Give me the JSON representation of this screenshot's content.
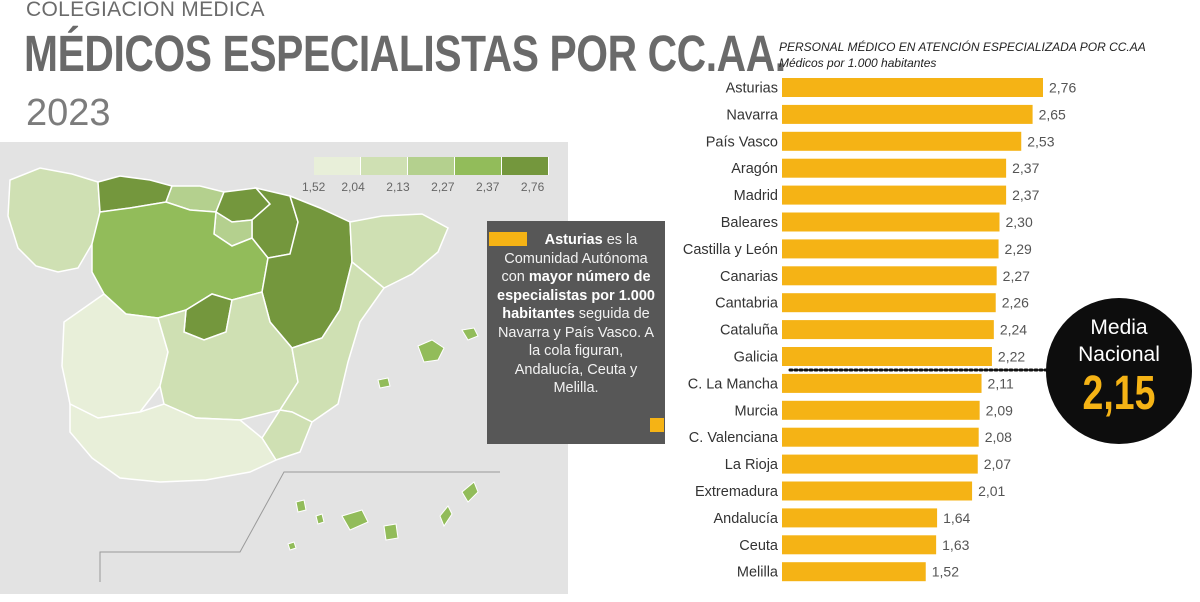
{
  "header": {
    "kicker": "COLEGIACIÓN MÉDICA",
    "title": "MÉDICOS ESPECIALISTAS POR CC.AA.",
    "year": "2023"
  },
  "legend": {
    "labels": [
      "1,52",
      "2,04",
      "2,13",
      "2,27",
      "2,37",
      "2,76"
    ],
    "colors": [
      "#e8efd9",
      "#cfe0b3",
      "#b4d08e",
      "#92bc5a",
      "#74973d"
    ]
  },
  "callout": {
    "region": "Asturias",
    "text1": "es la Comunidad Autónoma con",
    "bold": "mayor número de especialistas por 1.000 habitantes",
    "text2": "seguida de Navarra y País Vasco.",
    "text3": "A la cola figuran, Andalucía, Ceuta y Melilla."
  },
  "media": {
    "line1": "Media",
    "line2": "Nacional",
    "value": "2,15"
  },
  "colors": {
    "bar": "#f5b315",
    "dark": "#0d0d0d",
    "callout_bg": "#575757",
    "map_bg": "#e3e3e3"
  },
  "chart_data": {
    "type": "bar",
    "orientation": "horizontal",
    "title": "PERSONAL MÉDICO EN ATENCIÓN ESPECIALIZADA POR CC.AA",
    "subtitle": "Médicos por 1.000 habitantes",
    "categories": [
      "Asturias",
      "Navarra",
      "País Vasco",
      "Aragón",
      "Madrid",
      "Baleares",
      "Castilla y León",
      "Canarias",
      "Cantabria",
      "Cataluña",
      "Galicia",
      "C. La Mancha",
      "Murcia",
      "C. Valenciana",
      "La Rioja",
      "Extremadura",
      "Andalucía",
      "Ceuta",
      "Melilla"
    ],
    "values": [
      2.76,
      2.65,
      2.53,
      2.37,
      2.37,
      2.3,
      2.29,
      2.27,
      2.26,
      2.24,
      2.22,
      2.11,
      2.09,
      2.08,
      2.07,
      2.01,
      1.64,
      1.63,
      1.52
    ],
    "value_labels": [
      "2,76",
      "2,65",
      "2,53",
      "2,37",
      "2,37",
      "2,30",
      "2,29",
      "2,27",
      "2,26",
      "2,24",
      "2,22",
      "2,11",
      "2,09",
      "2,08",
      "2,07",
      "2,01",
      "1,64",
      "1,63",
      "1,52"
    ],
    "reference_line": 2.15,
    "xlim": [
      0,
      2.76
    ],
    "grid": false,
    "legend": "none"
  }
}
